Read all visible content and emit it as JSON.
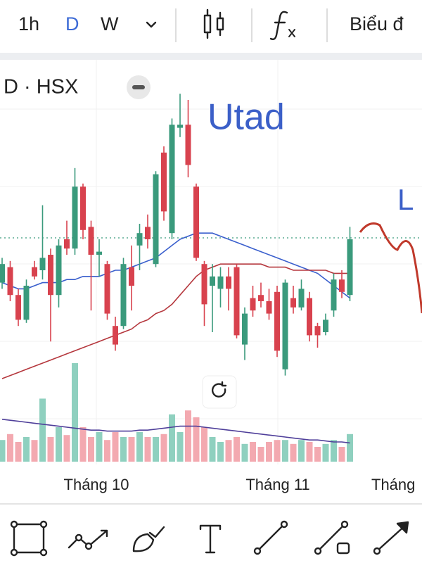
{
  "toolbar": {
    "intervals": [
      "1h",
      "D",
      "W"
    ],
    "chart_type_label": "Biểu đ"
  },
  "chart_data": {
    "type": "candlestick",
    "symbol": "D · HSX",
    "annotations": [
      "Utad",
      "L"
    ],
    "x_labels": [
      "Tháng 10",
      "Tháng 11",
      "Tháng"
    ],
    "up_color": "#3a9a7c",
    "down_color": "#d8424e",
    "ylim": [
      0,
      100
    ],
    "candles": [
      {
        "o": 36,
        "h": 44,
        "l": 34,
        "c": 42
      },
      {
        "o": 41,
        "h": 43,
        "l": 30,
        "c": 32
      },
      {
        "o": 32,
        "h": 34,
        "l": 22,
        "c": 24
      },
      {
        "o": 24,
        "h": 37,
        "l": 23,
        "c": 35
      },
      {
        "o": 41,
        "h": 43,
        "l": 37,
        "c": 38
      },
      {
        "o": 40,
        "h": 61,
        "l": 37,
        "c": 44
      },
      {
        "o": 45,
        "h": 47,
        "l": 17,
        "c": 32
      },
      {
        "o": 32,
        "h": 50,
        "l": 28,
        "c": 48
      },
      {
        "o": 50,
        "h": 56,
        "l": 45,
        "c": 47
      },
      {
        "o": 47,
        "h": 73,
        "l": 45,
        "c": 67
      },
      {
        "o": 67,
        "h": 68,
        "l": 50,
        "c": 53
      },
      {
        "o": 54,
        "h": 56,
        "l": 27,
        "c": 45
      },
      {
        "o": 45,
        "h": 50,
        "l": 38,
        "c": 46
      },
      {
        "o": 42,
        "h": 43,
        "l": 24,
        "c": 26
      },
      {
        "o": 22,
        "h": 25,
        "l": 14,
        "c": 16
      },
      {
        "o": 22,
        "h": 44,
        "l": 21,
        "c": 42
      },
      {
        "o": 41,
        "h": 48,
        "l": 27,
        "c": 35
      },
      {
        "o": 48,
        "h": 55,
        "l": 40,
        "c": 52
      },
      {
        "o": 54,
        "h": 58,
        "l": 47,
        "c": 50
      },
      {
        "o": 42,
        "h": 72,
        "l": 41,
        "c": 71
      },
      {
        "o": 78,
        "h": 80,
        "l": 56,
        "c": 59
      },
      {
        "o": 52,
        "h": 89,
        "l": 50,
        "c": 87
      },
      {
        "o": 86,
        "h": 97,
        "l": 83,
        "c": 87
      },
      {
        "o": 87,
        "h": 95,
        "l": 70,
        "c": 74
      },
      {
        "o": 67,
        "h": 68,
        "l": 43,
        "c": 44
      },
      {
        "o": 42,
        "h": 43,
        "l": 22,
        "c": 29
      },
      {
        "o": 35,
        "h": 42,
        "l": 20,
        "c": 38
      },
      {
        "o": 34,
        "h": 41,
        "l": 28,
        "c": 38
      },
      {
        "o": 38,
        "h": 41,
        "l": 27,
        "c": 34
      },
      {
        "o": 41,
        "h": 42,
        "l": 18,
        "c": 19
      },
      {
        "o": 16,
        "h": 28,
        "l": 11,
        "c": 26
      },
      {
        "o": 31,
        "h": 35,
        "l": 25,
        "c": 27
      },
      {
        "o": 32,
        "h": 36,
        "l": 28,
        "c": 30
      },
      {
        "o": 30,
        "h": 34,
        "l": 24,
        "c": 26
      },
      {
        "o": 33,
        "h": 35,
        "l": 12,
        "c": 14
      },
      {
        "o": 8,
        "h": 37,
        "l": 6,
        "c": 36
      },
      {
        "o": 31,
        "h": 35,
        "l": 26,
        "c": 28
      },
      {
        "o": 28,
        "h": 37,
        "l": 27,
        "c": 34
      },
      {
        "o": 31,
        "h": 33,
        "l": 17,
        "c": 19
      },
      {
        "o": 22,
        "h": 23,
        "l": 15,
        "c": 19
      },
      {
        "o": 20,
        "h": 26,
        "l": 19,
        "c": 24
      },
      {
        "o": 27,
        "h": 39,
        "l": 25,
        "c": 37
      },
      {
        "o": 37,
        "h": 40,
        "l": 31,
        "c": 33
      },
      {
        "o": 32,
        "h": 54,
        "l": 30,
        "c": 50
      }
    ],
    "series": [
      {
        "color": "#3a5fcd",
        "values": [
          36,
          35,
          34,
          34,
          35,
          36,
          36,
          36,
          37,
          37,
          38,
          38,
          38,
          39,
          40,
          40,
          41,
          42,
          43,
          44,
          46,
          48,
          50,
          51,
          52,
          52,
          52,
          51,
          50,
          49,
          48,
          47,
          46,
          45,
          44,
          43,
          42,
          41,
          40,
          39,
          37,
          35,
          33,
          31
        ]
      },
      {
        "color": "#b5373d",
        "values": [
          5,
          6,
          7,
          8,
          9,
          10,
          11,
          12,
          13,
          14,
          15,
          16,
          17,
          18,
          19,
          20,
          21,
          23,
          24,
          26,
          27,
          29,
          32,
          35,
          38,
          40,
          41,
          42,
          42,
          42,
          42,
          42,
          42,
          41,
          41,
          41,
          40,
          40,
          40,
          40,
          40,
          39,
          39,
          39
        ]
      }
    ],
    "volume": {
      "ylim": [
        0,
        100
      ],
      "up_color": "#8fd0bf",
      "down_color": "#f3a9b0",
      "ma_color": "#4f3f9a",
      "values": [
        22,
        28,
        20,
        25,
        22,
        64,
        25,
        35,
        27,
        100,
        35,
        25,
        30,
        22,
        30,
        25,
        25,
        30,
        25,
        25,
        28,
        48,
        30,
        52,
        45,
        35,
        25,
        20,
        22,
        25,
        18,
        20,
        15,
        20,
        22,
        22,
        18,
        22,
        20,
        15,
        18,
        22,
        15,
        28
      ],
      "ma": [
        43,
        42,
        41,
        40,
        39,
        38,
        37,
        36,
        35,
        34,
        33,
        32,
        32,
        31,
        31,
        31,
        31,
        32,
        32,
        33,
        34,
        35,
        36,
        36,
        36,
        35,
        34,
        33,
        32,
        31,
        30,
        29,
        28,
        27,
        26,
        25,
        24,
        23,
        22,
        22,
        21,
        20,
        20,
        19
      ]
    }
  }
}
